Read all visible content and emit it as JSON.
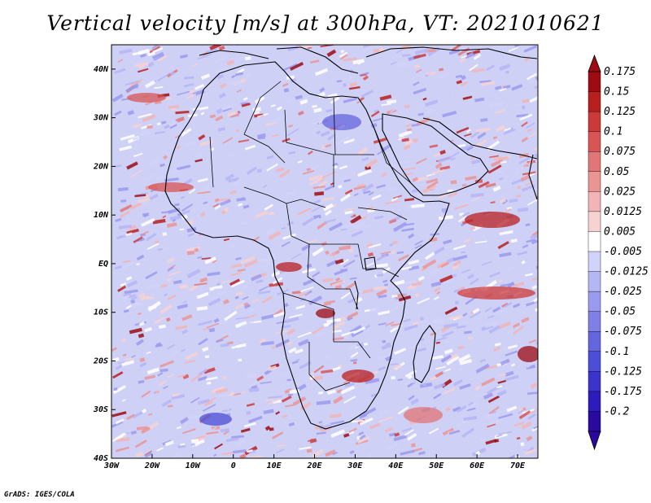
{
  "title": "Vertical velocity [m/s] at 300hPa, VT: 2021010621",
  "credit": "GrADS: IGES/COLA",
  "x_axis_labels": [
    "30W",
    "20W",
    "10W",
    "0",
    "10E",
    "20E",
    "30E",
    "40E",
    "50E",
    "60E",
    "70E"
  ],
  "y_axis_labels": [
    "40N",
    "30N",
    "20N",
    "10N",
    "EQ",
    "10S",
    "20S",
    "30S",
    "40S"
  ],
  "colorbar": {
    "colors": [
      "#2a0a9e",
      "#2e1bbd",
      "#3a34cc",
      "#4b4ed6",
      "#6466de",
      "#7f80e6",
      "#9a9aee",
      "#b5b6f4",
      "#d2d3fa",
      "#ffffff",
      "#f7d2d2",
      "#f2b4b4",
      "#ea9494",
      "#e27575",
      "#d85555",
      "#cc3939",
      "#b81f1f",
      "#9c0c12"
    ],
    "labels": [
      "-0.2",
      "-0.175",
      "-0.125",
      "-0.1",
      "-0.075",
      "-0.05",
      "-0.025",
      "-0.0125",
      "-0.005",
      "0.005",
      "0.0125",
      "0.025",
      "0.05",
      "0.075",
      "0.1",
      "0.125",
      "0.15",
      "0.175"
    ]
  },
  "chart_data": {
    "type": "heatmap",
    "title": "Vertical velocity [m/s] at 300hPa, VT: 2021010621",
    "variable": "Vertical velocity",
    "units": "m/s",
    "level": "300hPa",
    "valid_time": "2021010621",
    "x_range": [
      -30,
      75
    ],
    "y_range": [
      -40,
      45
    ],
    "color_levels": [
      -0.2,
      -0.175,
      -0.125,
      -0.1,
      -0.075,
      -0.05,
      -0.025,
      -0.0125,
      -0.005,
      0.005,
      0.0125,
      0.025,
      0.05,
      0.075,
      0.1,
      0.125,
      0.15,
      0.175
    ]
  }
}
